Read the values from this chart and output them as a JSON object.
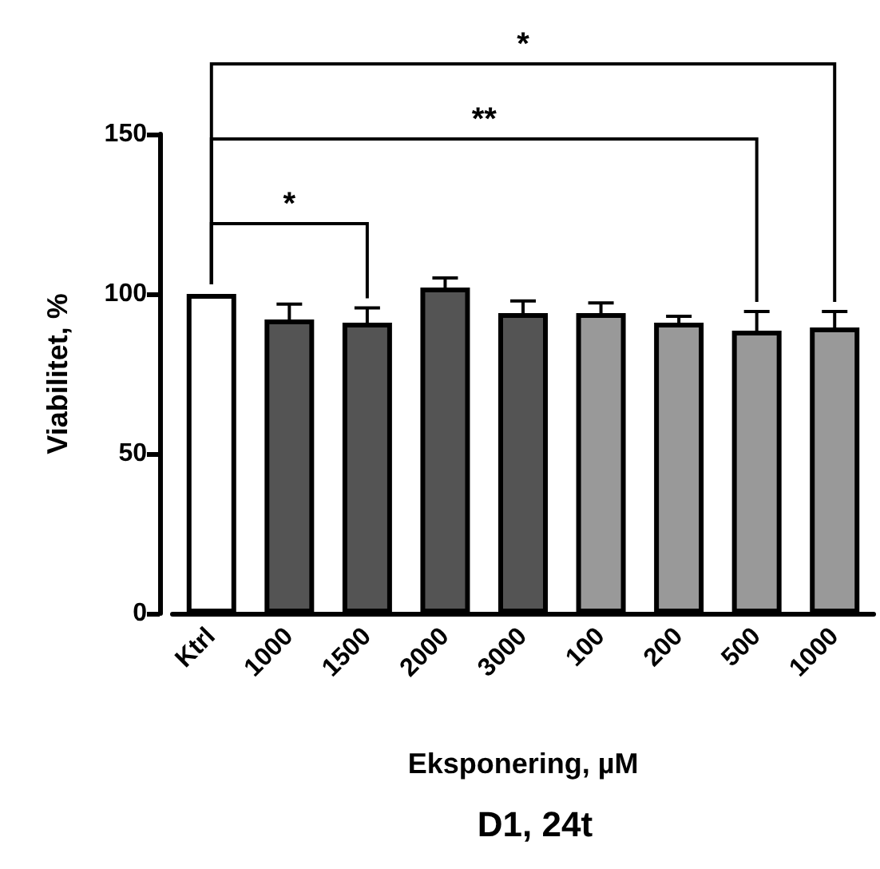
{
  "chart_data": {
    "type": "bar",
    "title": "D1, 24t",
    "xlabel": "Eksponering, µM",
    "ylabel": "Viabilitet, %",
    "categories": [
      "Ktrl",
      "1000",
      "1500",
      "2000",
      "3000",
      "100",
      "200",
      "500",
      "1000"
    ],
    "values": [
      100,
      92,
      91,
      102,
      94,
      94,
      91,
      88.5,
      89.5
    ],
    "errors": [
      null,
      4.8,
      4.6,
      3,
      3.8,
      3.2,
      2,
      6,
      5
    ],
    "colors": [
      "#ffffff",
      "#545454",
      "#545454",
      "#545454",
      "#545454",
      "#999999",
      "#999999",
      "#999999",
      "#999999"
    ],
    "ylim": [
      0,
      150
    ],
    "yticks": [
      0,
      50,
      100,
      150
    ],
    "grid": false,
    "annotations": [
      "*",
      "**",
      "*"
    ]
  }
}
